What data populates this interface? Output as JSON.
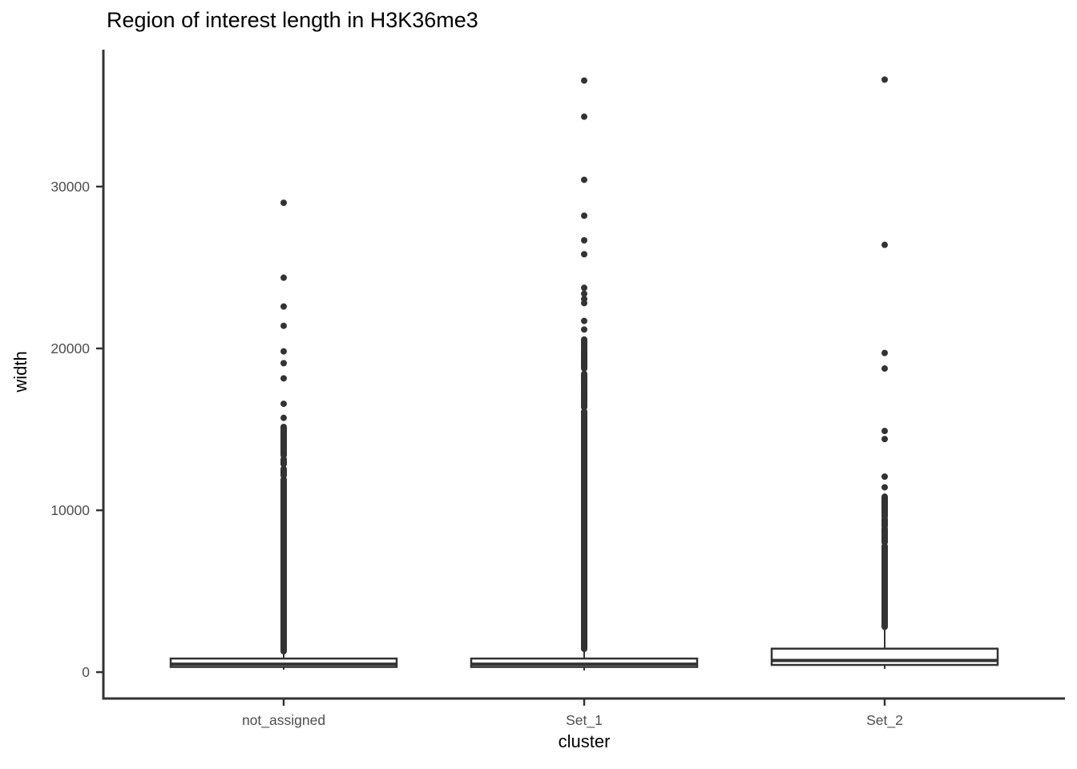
{
  "chart_data": {
    "type": "boxplot",
    "title": "Region of interest length in H3K36me3",
    "xlabel": "cluster",
    "ylabel": "width",
    "categories": [
      "not_assigned",
      "Set_1",
      "Set_2"
    ],
    "yticks": [
      0,
      10000,
      20000,
      30000
    ],
    "ylim": [
      -1630,
      38460
    ],
    "grid": false,
    "legend": "none",
    "boxes": [
      {
        "category": "not_assigned",
        "q1": 320,
        "median": 495,
        "q3": 840,
        "whisker_low": 150,
        "whisker_high": 1290,
        "dense_outlier_ranges": [
          [
            1290,
            11900
          ],
          [
            12150,
            12550
          ],
          [
            12850,
            13150
          ],
          [
            13400,
            15150
          ]
        ],
        "outliers": [
          15710,
          16580,
          18150,
          19090,
          19820,
          21400,
          22590,
          24370,
          29000
        ]
      },
      {
        "category": "Set_1",
        "q1": 320,
        "median": 495,
        "q3": 840,
        "whisker_low": 100,
        "whisker_high": 1435,
        "dense_outlier_ranges": [
          [
            1435,
            16100
          ],
          [
            16370,
            17690
          ],
          [
            17770,
            18430
          ],
          [
            18760,
            20000
          ],
          [
            20100,
            20550
          ]
        ],
        "outliers": [
          21170,
          21700,
          22800,
          23050,
          23380,
          23745,
          25820,
          26680,
          28200,
          30420,
          34320,
          36550
        ]
      },
      {
        "category": "Set_2",
        "q1": 445,
        "median": 720,
        "q3": 1450,
        "whisker_low": 200,
        "whisker_high": 2770,
        "dense_outlier_ranges": [
          [
            2800,
            7790
          ],
          [
            8030,
            8450
          ],
          [
            8530,
            8860
          ],
          [
            9025,
            9440
          ],
          [
            9600,
            9935
          ],
          [
            10015,
            10840
          ]
        ],
        "outliers": [
          11420,
          12080,
          14400,
          14900,
          18760,
          19720,
          26400,
          36610
        ]
      }
    ],
    "colors": {
      "stroke": "#333333",
      "tick_label": "#4d4d4d",
      "text": "#000000",
      "background": "#ffffff"
    }
  }
}
